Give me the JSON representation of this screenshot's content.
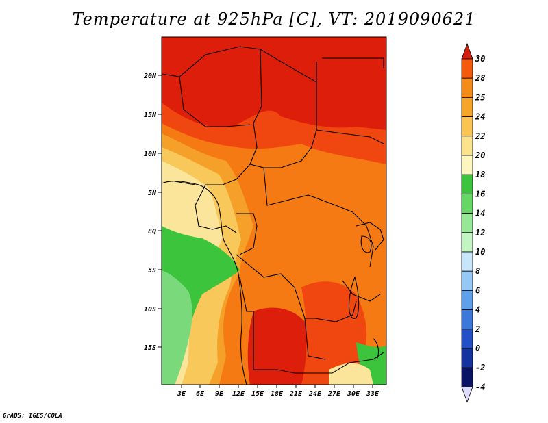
{
  "title": "Temperature at 925hPa [C], VT: 2019090621",
  "credit": "GrADS: IGES/COLA",
  "lat_labels": [
    "20N",
    "15N",
    "10N",
    "5N",
    "EQ",
    "5S",
    "10S",
    "15S"
  ],
  "lon_labels": [
    "3E",
    "6E",
    "9E",
    "12E",
    "15E",
    "18E",
    "21E",
    "24E",
    "27E",
    "30E",
    "33E"
  ],
  "colorbar": {
    "labels": [
      "30",
      "28",
      "25",
      "24",
      "22",
      "20",
      "18",
      "16",
      "14",
      "12",
      "10",
      "8",
      "6",
      "4",
      "2",
      "0",
      "-2",
      "-4"
    ],
    "colors": [
      "#e61e0a",
      "#f55a0a",
      "#f58c19",
      "#f5a628",
      "#f9c450",
      "#fbe38c",
      "#fdf6be",
      "#3cc43c",
      "#64d764",
      "#96e896",
      "#c3f5c3",
      "#c8e6fa",
      "#96c8f5",
      "#5fa0eb",
      "#3c78dc",
      "#2350c8",
      "#1432a0",
      "#0a1464",
      "#dcdcfa"
    ],
    "top_color": "#d21e0a",
    "bottom_color": "#dcdcfa"
  },
  "map_colors": {
    "hot": "#dc1e0a",
    "warm": "#f04610",
    "orange": "#f57a14",
    "lorange": "#f5a028",
    "yellow": "#f9c85a",
    "lyellow": "#fbe59a",
    "green": "#3cc43c",
    "lgreen": "#7ad97a"
  }
}
